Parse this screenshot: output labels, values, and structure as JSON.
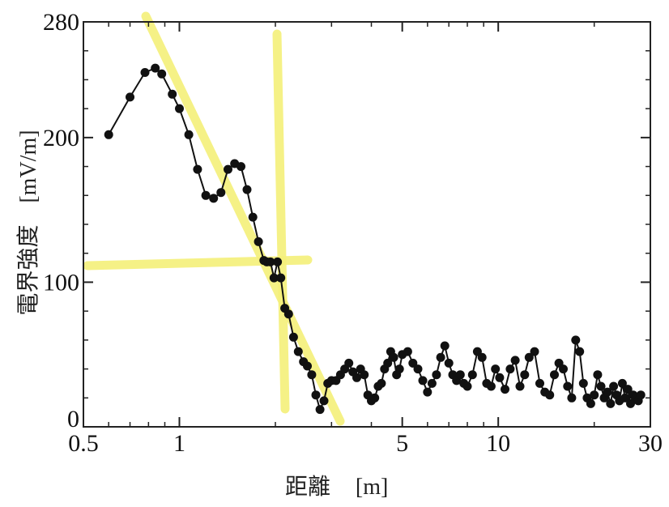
{
  "chart_data": {
    "type": "line",
    "title": "",
    "xlabel": "距離",
    "xunit": "[m]",
    "ylabel": "電界強度",
    "yunit": "[mV/m]",
    "x_scale": "log",
    "xlim": [
      0.5,
      30
    ],
    "ylim": [
      0,
      280
    ],
    "x_ticks": [
      0.5,
      1,
      5,
      10,
      30
    ],
    "x_tick_labels": [
      "0.5",
      "1",
      "5",
      "10",
      "30"
    ],
    "y_ticks": [
      0,
      100,
      200,
      280
    ],
    "y_tick_labels": [
      "0",
      "100",
      "200",
      "280"
    ],
    "grid": false,
    "legend": "none",
    "marker_color": "#111111",
    "highlight_color": "#f5f07a",
    "series": [
      {
        "x": [
          0.6,
          0.7,
          0.78,
          0.84,
          0.88,
          0.95,
          1.0,
          1.07,
          1.14,
          1.21,
          1.28,
          1.35,
          1.42,
          1.49,
          1.56,
          1.63,
          1.7,
          1.77,
          1.84,
          1.88,
          1.93,
          1.98,
          2.03,
          2.08,
          2.14,
          2.2,
          2.28,
          2.36,
          2.45,
          2.52,
          2.6,
          2.68,
          2.76,
          2.84,
          2.92,
          3.0,
          3.1,
          3.2,
          3.3,
          3.4,
          3.5,
          3.6,
          3.7,
          3.8,
          3.9,
          4.0,
          4.1,
          4.2,
          4.3,
          4.4,
          4.5,
          4.6,
          4.7,
          4.8,
          4.9,
          5.0,
          5.2,
          5.4,
          5.6,
          5.8,
          6.0,
          6.2,
          6.4,
          6.6,
          6.8,
          7.0,
          7.2,
          7.4,
          7.6,
          7.8,
          8.0,
          8.3,
          8.6,
          8.9,
          9.2,
          9.5,
          9.8,
          10.1,
          10.5,
          10.9,
          11.3,
          11.7,
          12.1,
          12.5,
          13.0,
          13.5,
          14.0,
          14.5,
          15.0,
          15.5,
          16.0,
          16.5,
          17.0,
          17.5,
          18.0,
          18.5,
          19.0,
          19.5,
          20.0,
          20.5,
          21.0,
          21.5,
          22.0,
          22.5,
          23.0,
          23.5,
          24.0,
          24.5,
          25.0,
          25.5,
          26.0,
          26.5,
          27.0,
          27.5,
          28.0
        ],
        "y": [
          202,
          228,
          245,
          248,
          244,
          230,
          220,
          202,
          178,
          160,
          158,
          162,
          178,
          182,
          180,
          164,
          145,
          128,
          115,
          114,
          114,
          103,
          114,
          103,
          82,
          78,
          62,
          52,
          45,
          42,
          36,
          22,
          12,
          18,
          30,
          32,
          32,
          36,
          40,
          44,
          38,
          34,
          40,
          36,
          22,
          18,
          20,
          28,
          30,
          40,
          44,
          52,
          48,
          36,
          40,
          50,
          52,
          44,
          40,
          32,
          24,
          30,
          36,
          48,
          56,
          44,
          36,
          32,
          36,
          30,
          28,
          36,
          52,
          48,
          30,
          28,
          40,
          34,
          26,
          40,
          46,
          28,
          36,
          48,
          52,
          30,
          24,
          22,
          36,
          44,
          40,
          28,
          20,
          60,
          52,
          30,
          20,
          16,
          22,
          36,
          28,
          20,
          24,
          16,
          28,
          22,
          18,
          30,
          20,
          26,
          16,
          22,
          20,
          18,
          22
        ]
      }
    ]
  }
}
